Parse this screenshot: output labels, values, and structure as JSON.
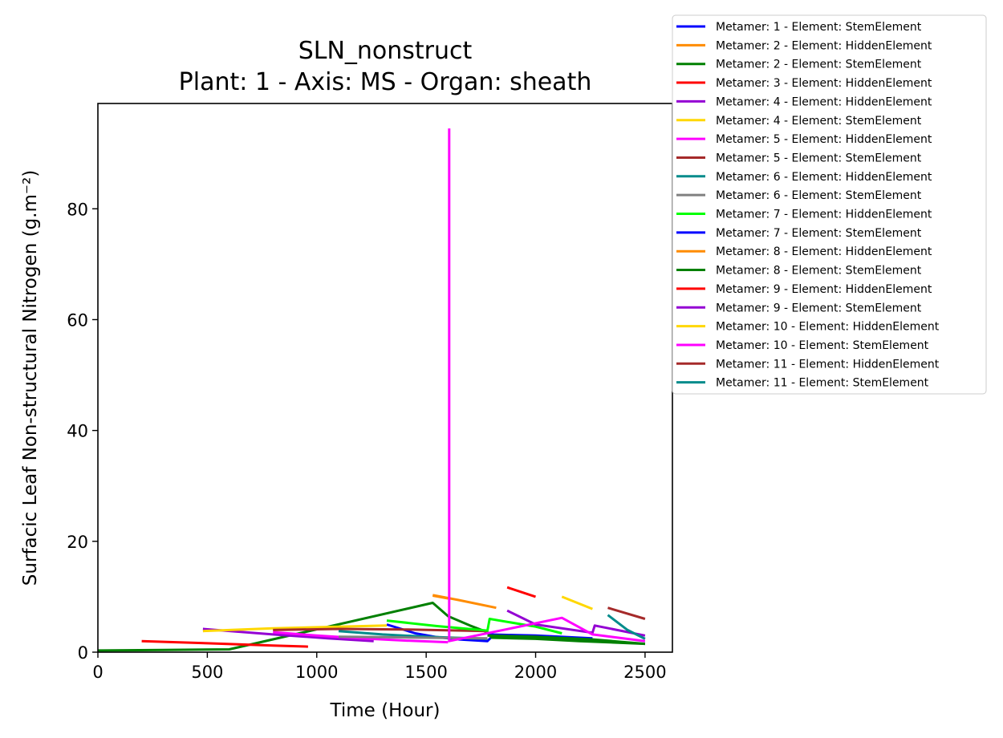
{
  "chart_data": {
    "type": "line",
    "title": "SLN_nonstruct",
    "subtitle": "Plant: 1 - Axis: MS - Organ: sheath",
    "xlabel": "Time (Hour)",
    "ylabel": "Surfacic Leaf Non-structural Nitrogen (g.m⁻²)",
    "xlim": [
      0,
      2625
    ],
    "ylim": [
      0,
      99
    ],
    "xticks": [
      0,
      500,
      1000,
      1500,
      2000,
      2500
    ],
    "yticks": [
      0,
      20,
      40,
      60,
      80
    ],
    "grid": false,
    "legend_position": "outside-right",
    "series": [
      {
        "name": "Metamer: 1 - Element: StemElement",
        "color": "#0000ff",
        "points": [
          [
            1320,
            5.0
          ],
          [
            1450,
            3.4
          ],
          [
            1550,
            2.7
          ],
          [
            1650,
            2.3
          ],
          [
            1780,
            2.0
          ],
          [
            1800,
            2.8
          ],
          [
            2000,
            2.8
          ],
          [
            2260,
            2.2
          ]
        ]
      },
      {
        "name": "Metamer: 2 - Element: HiddenElement",
        "color": "#ff8c00",
        "points": [
          [
            1530,
            10.3
          ],
          [
            1650,
            9.4
          ],
          [
            1820,
            8.0
          ]
        ]
      },
      {
        "name": "Metamer: 2 - Element: StemElement",
        "color": "#008000",
        "points": [
          [
            0,
            0.3
          ],
          [
            300,
            0.4
          ],
          [
            600,
            0.5
          ],
          [
            1530,
            8.9
          ],
          [
            1600,
            6.5
          ],
          [
            1700,
            4.8
          ],
          [
            1780,
            3.6
          ],
          [
            1800,
            2.6
          ],
          [
            2000,
            2.4
          ],
          [
            2200,
            2.0
          ],
          [
            2500,
            1.5
          ]
        ]
      },
      {
        "name": "Metamer: 3 - Element: HiddenElement",
        "color": "#ff0000",
        "points": [
          [
            200,
            2.0
          ],
          [
            500,
            1.6
          ],
          [
            800,
            1.2
          ],
          [
            960,
            1.0
          ]
        ]
      },
      {
        "name": "Metamer: 4 - Element: HiddenElement",
        "color": "#9400d3",
        "points": [
          [
            480,
            4.2
          ],
          [
            800,
            3.2
          ],
          [
            1050,
            2.5
          ],
          [
            1260,
            2.0
          ]
        ]
      },
      {
        "name": "Metamer: 4 - Element: StemElement",
        "color": "#ffd700",
        "points": [
          [
            480,
            3.8
          ],
          [
            800,
            4.3
          ],
          [
            1100,
            4.6
          ],
          [
            1320,
            4.8
          ]
        ]
      },
      {
        "name": "Metamer: 5 - Element: HiddenElement",
        "color": "#ff00ff",
        "points": [
          [
            800,
            3.6
          ],
          [
            1000,
            3.0
          ],
          [
            1200,
            2.5
          ],
          [
            1400,
            2.1
          ],
          [
            1600,
            1.8
          ]
        ]
      },
      {
        "name": "Metamer: 5 - Element: StemElement",
        "color": "#a52a2a",
        "points": [
          [
            800,
            4.0
          ],
          [
            1100,
            4.2
          ],
          [
            1400,
            4.1
          ],
          [
            1780,
            3.8
          ]
        ]
      },
      {
        "name": "Metamer: 6 - Element: HiddenElement",
        "color": "#008b8b",
        "points": [
          [
            1100,
            3.8
          ],
          [
            1300,
            3.2
          ],
          [
            1500,
            2.8
          ],
          [
            1780,
            2.4
          ]
        ]
      },
      {
        "name": "Metamer: 6 - Element: StemElement",
        "color": "#808080",
        "points": [
          [
            1100,
            2.8
          ],
          [
            1300,
            2.7
          ],
          [
            1500,
            2.6
          ],
          [
            1780,
            2.5
          ]
        ]
      },
      {
        "name": "Metamer: 7 - Element: HiddenElement",
        "color": "#00ff00",
        "points": [
          [
            1320,
            5.7
          ],
          [
            1550,
            4.7
          ],
          [
            1780,
            3.9
          ],
          [
            1790,
            6.0
          ],
          [
            2000,
            4.6
          ],
          [
            2120,
            3.4
          ]
        ]
      },
      {
        "name": "Metamer: 7 - Element: StemElement",
        "color": "#0000ff",
        "points": [
          [
            1780,
            3.2
          ],
          [
            2000,
            3.0
          ],
          [
            2260,
            2.5
          ]
        ]
      },
      {
        "name": "Metamer: 8 - Element: HiddenElement",
        "color": "#ff8c00",
        "points": [
          [
            1530,
            10.2
          ],
          [
            1600,
            9.7
          ]
        ]
      },
      {
        "name": "Metamer: 8 - Element: StemElement",
        "color": "#008000",
        "points": [
          [
            1780,
            3.0
          ],
          [
            2000,
            2.8
          ],
          [
            2260,
            2.3
          ],
          [
            2500,
            1.5
          ]
        ]
      },
      {
        "name": "Metamer: 9 - Element: HiddenElement",
        "color": "#ff0000",
        "points": [
          [
            1870,
            11.7
          ],
          [
            2000,
            10.0
          ]
        ]
      },
      {
        "name": "Metamer: 9 - Element: StemElement",
        "color": "#9400d3",
        "points": [
          [
            1870,
            7.5
          ],
          [
            2000,
            5.0
          ],
          [
            2260,
            3.5
          ],
          [
            2270,
            4.8
          ],
          [
            2500,
            3.0
          ]
        ]
      },
      {
        "name": "Metamer: 10 - Element: HiddenElement",
        "color": "#ffd700",
        "points": [
          [
            2120,
            10.0
          ],
          [
            2260,
            7.8
          ]
        ]
      },
      {
        "name": "Metamer: 10 - Element: StemElement",
        "color": "#ff00ff",
        "points": [
          [
            1605,
            94.5
          ],
          [
            1605,
            2.0
          ],
          [
            2120,
            6.2
          ],
          [
            2260,
            3.2
          ],
          [
            2500,
            2.0
          ]
        ]
      },
      {
        "name": "Metamer: 11 - Element: HiddenElement",
        "color": "#a52a2a",
        "points": [
          [
            2330,
            8.0
          ],
          [
            2500,
            6.0
          ]
        ]
      },
      {
        "name": "Metamer: 11 - Element: StemElement",
        "color": "#008b8b",
        "points": [
          [
            2330,
            6.7
          ],
          [
            2420,
            4.0
          ],
          [
            2500,
            2.4
          ]
        ]
      }
    ]
  }
}
